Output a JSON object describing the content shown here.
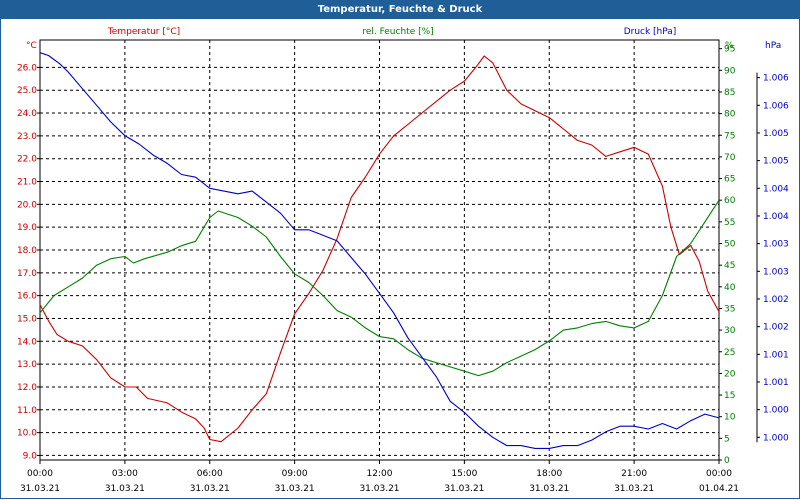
{
  "window": {
    "title": "Temperatur, Feuchte & Druck"
  },
  "legend": {
    "temperature": "Temperatur [°C]",
    "humidity": "rel. Feuchte [%]",
    "pressure": "Druck [hPa]"
  },
  "axes": {
    "left_unit": "°C",
    "right_unit": "%",
    "far_right_unit": "hPa"
  },
  "colors": {
    "temperature": "#cc0000",
    "humidity": "#008000",
    "pressure": "#0000cc",
    "title_bar": "#1f5e96",
    "grid": "#000000"
  },
  "chart_data": {
    "type": "line",
    "title": "Temperatur, Feuchte & Druck",
    "grid": true,
    "x": {
      "range": [
        "31.03.21 00:00",
        "01.04.21 00:00"
      ],
      "ticks": [
        {
          "time": "00:00",
          "date": "31.03.21"
        },
        {
          "time": "03:00",
          "date": "31.03.21"
        },
        {
          "time": "06:00",
          "date": "31.03.21"
        },
        {
          "time": "09:00",
          "date": "31.03.21"
        },
        {
          "time": "12:00",
          "date": "31.03.21"
        },
        {
          "time": "15:00",
          "date": "31.03.21"
        },
        {
          "time": "18:00",
          "date": "31.03.21"
        },
        {
          "time": "21:00",
          "date": "31.03.21"
        },
        {
          "time": "00:00",
          "date": "01.04.21"
        }
      ]
    },
    "y_left": {
      "label": "°C",
      "min": 8.8,
      "max": 27.2,
      "ticks": [
        "9.0",
        "10.0",
        "11.0",
        "12.0",
        "13.0",
        "14.0",
        "15.0",
        "16.0",
        "17.0",
        "18.0",
        "19.0",
        "20.0",
        "21.0",
        "22.0",
        "23.0",
        "24.0",
        "25.0",
        "26.0"
      ]
    },
    "y_right": {
      "label": "%",
      "min": 0,
      "max": 97,
      "ticks": [
        "0",
        "5",
        "10",
        "15",
        "20",
        "25",
        "30",
        "35",
        "40",
        "45",
        "50",
        "55",
        "60",
        "65",
        "70",
        "75",
        "80",
        "85",
        "90",
        "95"
      ]
    },
    "y_far_right": {
      "label": "hPa",
      "min": 999.59,
      "max": 1007.18,
      "ticks": [
        {
          "value": 1000.0,
          "label": "1.000"
        },
        {
          "value": 1000.5,
          "label": "1.000"
        },
        {
          "value": 1001.0,
          "label": "1.001"
        },
        {
          "value": 1001.5,
          "label": "1.001"
        },
        {
          "value": 1002.0,
          "label": "1.002"
        },
        {
          "value": 1002.5,
          "label": "1.002"
        },
        {
          "value": 1003.0,
          "label": "1.003"
        },
        {
          "value": 1003.5,
          "label": "1.003"
        },
        {
          "value": 1004.0,
          "label": "1.004"
        },
        {
          "value": 1004.5,
          "label": "1.004"
        },
        {
          "value": 1005.0,
          "label": "1.005"
        },
        {
          "value": 1005.5,
          "label": "1.005"
        },
        {
          "value": 1006.0,
          "label": "1.006"
        },
        {
          "value": 1006.5,
          "label": "1.006"
        }
      ]
    },
    "series": [
      {
        "name": "Temperatur [°C]",
        "axis": "left",
        "points": [
          [
            0,
            15.6
          ],
          [
            0.3,
            14.9
          ],
          [
            0.6,
            14.3
          ],
          [
            1,
            14
          ],
          [
            1.5,
            13.8
          ],
          [
            2,
            13.2
          ],
          [
            2.5,
            12.4
          ],
          [
            3,
            12
          ],
          [
            3.4,
            12
          ],
          [
            3.8,
            11.5
          ],
          [
            4.5,
            11.3
          ],
          [
            5,
            10.9
          ],
          [
            5.5,
            10.6
          ],
          [
            5.8,
            10.2
          ],
          [
            6,
            9.7
          ],
          [
            6.4,
            9.6
          ],
          [
            7,
            10.2
          ],
          [
            7.5,
            11
          ],
          [
            8,
            11.7
          ],
          [
            8.5,
            13.5
          ],
          [
            9,
            15.2
          ],
          [
            9.5,
            16.1
          ],
          [
            10,
            17.1
          ],
          [
            10.5,
            18.5
          ],
          [
            11,
            20.3
          ],
          [
            11.5,
            21.2
          ],
          [
            12,
            22.2
          ],
          [
            12.5,
            23
          ],
          [
            13,
            23.5
          ],
          [
            13.5,
            24
          ],
          [
            14,
            24.5
          ],
          [
            14.5,
            25
          ],
          [
            15,
            25.4
          ],
          [
            15.4,
            26
          ],
          [
            15.7,
            26.5
          ],
          [
            16,
            26.2
          ],
          [
            16.5,
            25
          ],
          [
            17,
            24.4
          ],
          [
            17.5,
            24.1
          ],
          [
            18,
            23.8
          ],
          [
            18.5,
            23.3
          ],
          [
            19,
            22.8
          ],
          [
            19.5,
            22.6
          ],
          [
            20,
            22.1
          ],
          [
            20.5,
            22.3
          ],
          [
            21,
            22.5
          ],
          [
            21.5,
            22.2
          ],
          [
            22,
            20.8
          ],
          [
            22.3,
            19
          ],
          [
            22.6,
            17.8
          ],
          [
            23,
            18.2
          ],
          [
            23.3,
            17.5
          ],
          [
            23.6,
            16.2
          ],
          [
            24,
            15.3
          ]
        ]
      },
      {
        "name": "rel. Feuchte [%]",
        "axis": "right",
        "points": [
          [
            0,
            34
          ],
          [
            0.5,
            38
          ],
          [
            1,
            40
          ],
          [
            1.5,
            42
          ],
          [
            2,
            45
          ],
          [
            2.5,
            46.5
          ],
          [
            3,
            47
          ],
          [
            3.3,
            45.5
          ],
          [
            3.7,
            46.5
          ],
          [
            4.5,
            48
          ],
          [
            5,
            49.5
          ],
          [
            5.5,
            50.5
          ],
          [
            6,
            56
          ],
          [
            6.3,
            57.5
          ],
          [
            7,
            56
          ],
          [
            7.5,
            54
          ],
          [
            8,
            51.5
          ],
          [
            8.5,
            47
          ],
          [
            9,
            43
          ],
          [
            9.5,
            41
          ],
          [
            10,
            38
          ],
          [
            10.5,
            34.5
          ],
          [
            11,
            33
          ],
          [
            11.5,
            30.5
          ],
          [
            12,
            28.5
          ],
          [
            12.5,
            28
          ],
          [
            13,
            25.5
          ],
          [
            13.5,
            23.5
          ],
          [
            14,
            22.5
          ],
          [
            14.5,
            21.5
          ],
          [
            15,
            20.5
          ],
          [
            15.5,
            19.5
          ],
          [
            16,
            20.5
          ],
          [
            16.5,
            22.5
          ],
          [
            17,
            24
          ],
          [
            17.5,
            25.5
          ],
          [
            18,
            27.5
          ],
          [
            18.5,
            30
          ],
          [
            19,
            30.5
          ],
          [
            19.5,
            31.5
          ],
          [
            20,
            32
          ],
          [
            20.5,
            31
          ],
          [
            21,
            30.5
          ],
          [
            21.5,
            32
          ],
          [
            22,
            38
          ],
          [
            22.5,
            47
          ],
          [
            23,
            50
          ],
          [
            23.5,
            55
          ],
          [
            24,
            60
          ]
        ]
      },
      {
        "name": "Druck [hPa]",
        "axis": "far_right",
        "points": [
          [
            0,
            1006.95
          ],
          [
            0.3,
            1006.9
          ],
          [
            0.7,
            1006.75
          ],
          [
            1,
            1006.6
          ],
          [
            1.5,
            1006.3
          ],
          [
            2,
            1006.0
          ],
          [
            2.5,
            1005.7
          ],
          [
            3,
            1005.45
          ],
          [
            3.5,
            1005.3
          ],
          [
            4,
            1005.1
          ],
          [
            4.5,
            1004.95
          ],
          [
            5,
            1004.75
          ],
          [
            5.5,
            1004.7
          ],
          [
            6,
            1004.5
          ],
          [
            6.5,
            1004.45
          ],
          [
            7,
            1004.4
          ],
          [
            7.5,
            1004.45
          ],
          [
            8,
            1004.25
          ],
          [
            8.5,
            1004.05
          ],
          [
            9,
            1003.75
          ],
          [
            9.5,
            1003.75
          ],
          [
            10,
            1003.65
          ],
          [
            10.5,
            1003.55
          ],
          [
            11,
            1003.25
          ],
          [
            11.5,
            1002.95
          ],
          [
            12,
            1002.6
          ],
          [
            12.5,
            1002.25
          ],
          [
            13,
            1001.8
          ],
          [
            13.5,
            1001.45
          ],
          [
            14,
            1001.1
          ],
          [
            14.5,
            1000.65
          ],
          [
            15,
            1000.45
          ],
          [
            15.5,
            1000.2
          ],
          [
            16,
            1000.0
          ],
          [
            16.5,
            999.85
          ],
          [
            17,
            999.85
          ],
          [
            17.5,
            999.8
          ],
          [
            18,
            999.8
          ],
          [
            18.5,
            999.85
          ],
          [
            19,
            999.85
          ],
          [
            19.5,
            999.95
          ],
          [
            20,
            1000.1
          ],
          [
            20.5,
            1000.2
          ],
          [
            21,
            1000.2
          ],
          [
            21.5,
            1000.15
          ],
          [
            22,
            1000.25
          ],
          [
            22.5,
            1000.15
          ],
          [
            23,
            1000.3
          ],
          [
            23.5,
            1000.42
          ],
          [
            24,
            1000.35
          ]
        ]
      }
    ]
  }
}
